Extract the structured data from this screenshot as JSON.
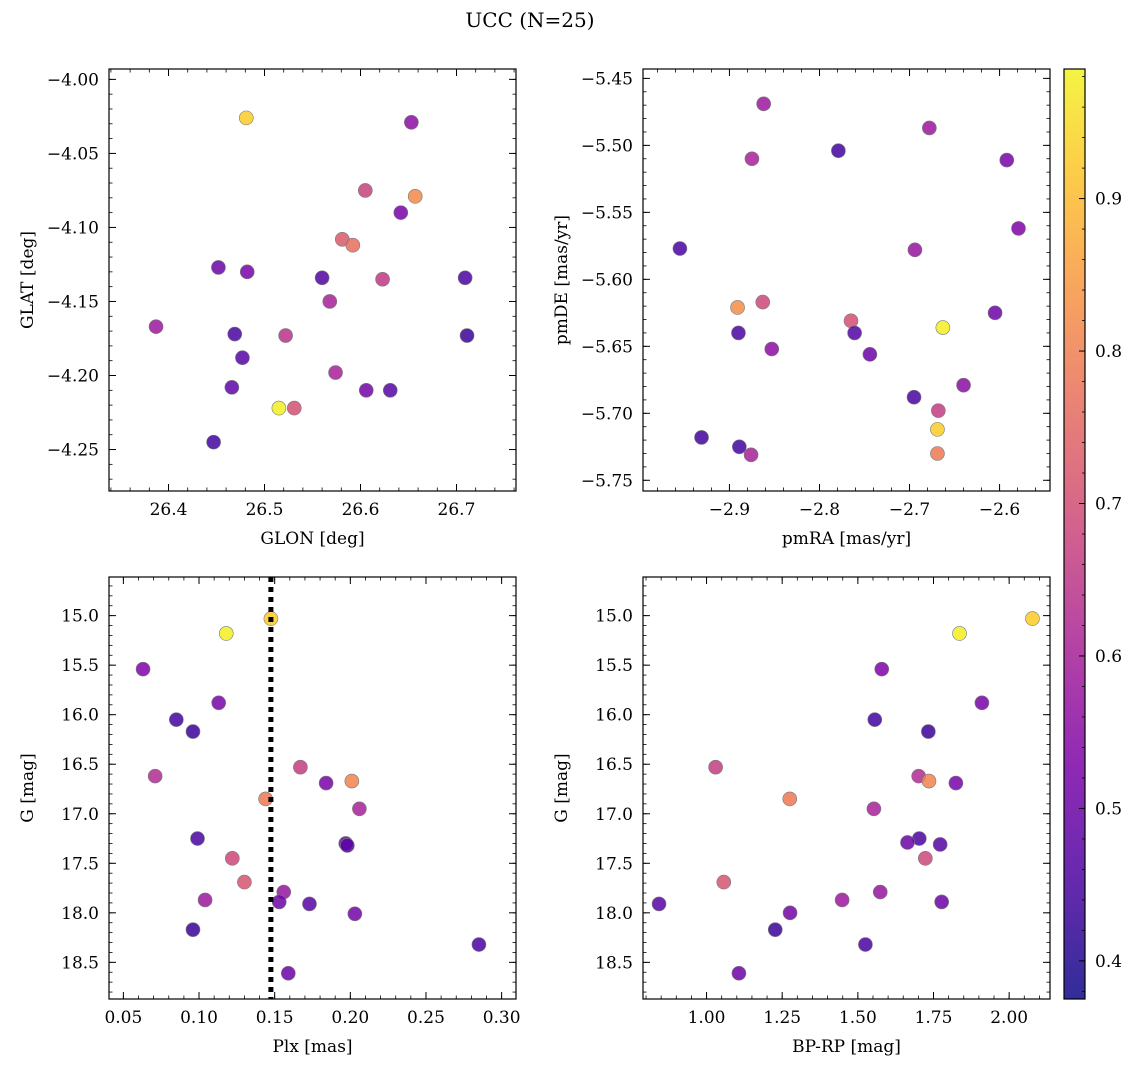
{
  "title": "UCC (N=25)",
  "colorbar": {
    "range": [
      0.375,
      0.985
    ],
    "ticks": [
      0.4,
      0.5,
      0.6,
      0.7,
      0.8,
      0.9
    ],
    "tick_labels": [
      "0.4",
      "0.5",
      "0.6",
      "0.7",
      "0.8",
      "0.9"
    ],
    "colormap": "plasma"
  },
  "chart_data": [
    {
      "type": "scatter",
      "xlabel": "GLON [deg]",
      "ylabel": "GLAT [deg]",
      "xlim": [
        26.338,
        26.762
      ],
      "ylim": [
        -4.278,
        -3.993
      ],
      "xticks": [
        26.4,
        26.5,
        26.6,
        26.7
      ],
      "xtick_labels": [
        "26.4",
        "26.5",
        "26.6",
        "26.7"
      ],
      "yticks": [
        -4.25,
        -4.2,
        -4.15,
        -4.1,
        -4.05,
        -4.0
      ],
      "ytick_labels": [
        "−4.25",
        "−4.20",
        "−4.15",
        "−4.10",
        "−4.05",
        "−4.00"
      ],
      "y_inverted": false,
      "points": [
        {
          "x": 26.481,
          "y": -4.026,
          "c": 0.92
        },
        {
          "x": 26.653,
          "y": -4.029,
          "c": 0.55
        },
        {
          "x": 26.605,
          "y": -4.075,
          "c": 0.67
        },
        {
          "x": 26.657,
          "y": -4.079,
          "c": 0.81
        },
        {
          "x": 26.642,
          "y": -4.09,
          "c": 0.52
        },
        {
          "x": 26.581,
          "y": -4.108,
          "c": 0.72
        },
        {
          "x": 26.592,
          "y": -4.112,
          "c": 0.76
        },
        {
          "x": 26.452,
          "y": -4.127,
          "c": 0.5
        },
        {
          "x": 26.482,
          "y": -4.13,
          "c": 0.52
        },
        {
          "x": 26.56,
          "y": -4.134,
          "c": 0.46
        },
        {
          "x": 26.709,
          "y": -4.134,
          "c": 0.45
        },
        {
          "x": 26.623,
          "y": -4.135,
          "c": 0.65
        },
        {
          "x": 26.568,
          "y": -4.15,
          "c": 0.6
        },
        {
          "x": 26.387,
          "y": -4.167,
          "c": 0.58
        },
        {
          "x": 26.469,
          "y": -4.172,
          "c": 0.45
        },
        {
          "x": 26.522,
          "y": -4.173,
          "c": 0.64
        },
        {
          "x": 26.711,
          "y": -4.173,
          "c": 0.43
        },
        {
          "x": 26.477,
          "y": -4.188,
          "c": 0.47
        },
        {
          "x": 26.574,
          "y": -4.198,
          "c": 0.6
        },
        {
          "x": 26.466,
          "y": -4.208,
          "c": 0.48
        },
        {
          "x": 26.606,
          "y": -4.21,
          "c": 0.51
        },
        {
          "x": 26.631,
          "y": -4.21,
          "c": 0.47
        },
        {
          "x": 26.515,
          "y": -4.222,
          "c": 0.97
        },
        {
          "x": 26.531,
          "y": -4.222,
          "c": 0.7
        },
        {
          "x": 26.447,
          "y": -4.245,
          "c": 0.44
        }
      ]
    },
    {
      "type": "scatter",
      "xlabel": "pmRA [mas/yr]",
      "ylabel": "pmDE [mas/yr]",
      "xlim": [
        -2.996,
        -2.544
      ],
      "ylim": [
        -5.758,
        -5.443
      ],
      "xticks": [
        -2.9,
        -2.8,
        -2.7,
        -2.6
      ],
      "xtick_labels": [
        "−2.9",
        "−2.8",
        "−2.7",
        "−2.6"
      ],
      "yticks": [
        -5.75,
        -5.7,
        -5.65,
        -5.6,
        -5.55,
        -5.5,
        -5.45
      ],
      "ytick_labels": [
        "−5.75",
        "−5.70",
        "−5.65",
        "−5.60",
        "−5.55",
        "−5.50",
        "−5.45"
      ],
      "y_inverted": false,
      "points": [
        {
          "x": -2.862,
          "y": -5.469,
          "c": 0.58
        },
        {
          "x": -2.678,
          "y": -5.487,
          "c": 0.58
        },
        {
          "x": -2.779,
          "y": -5.504,
          "c": 0.44
        },
        {
          "x": -2.875,
          "y": -5.51,
          "c": 0.6
        },
        {
          "x": -2.592,
          "y": -5.511,
          "c": 0.52
        },
        {
          "x": -2.579,
          "y": -5.562,
          "c": 0.53
        },
        {
          "x": -2.955,
          "y": -5.577,
          "c": 0.45
        },
        {
          "x": -2.694,
          "y": -5.578,
          "c": 0.57
        },
        {
          "x": -2.863,
          "y": -5.617,
          "c": 0.68
        },
        {
          "x": -2.891,
          "y": -5.621,
          "c": 0.82
        },
        {
          "x": -2.605,
          "y": -5.625,
          "c": 0.5
        },
        {
          "x": -2.765,
          "y": -5.631,
          "c": 0.7
        },
        {
          "x": -2.663,
          "y": -5.636,
          "c": 0.97
        },
        {
          "x": -2.89,
          "y": -5.64,
          "c": 0.45
        },
        {
          "x": -2.761,
          "y": -5.64,
          "c": 0.46
        },
        {
          "x": -2.853,
          "y": -5.652,
          "c": 0.55
        },
        {
          "x": -2.744,
          "y": -5.656,
          "c": 0.5
        },
        {
          "x": -2.64,
          "y": -5.679,
          "c": 0.55
        },
        {
          "x": -2.695,
          "y": -5.688,
          "c": 0.45
        },
        {
          "x": -2.668,
          "y": -5.698,
          "c": 0.66
        },
        {
          "x": -2.669,
          "y": -5.712,
          "c": 0.92
        },
        {
          "x": -2.931,
          "y": -5.718,
          "c": 0.44
        },
        {
          "x": -2.889,
          "y": -5.725,
          "c": 0.44
        },
        {
          "x": -2.876,
          "y": -5.731,
          "c": 0.6
        },
        {
          "x": -2.669,
          "y": -5.73,
          "c": 0.78
        }
      ]
    },
    {
      "type": "scatter",
      "xlabel": "Plx [mas]",
      "ylabel": "G [mag]",
      "xlim": [
        0.0405,
        0.3095
      ],
      "ylim": [
        18.87,
        14.61
      ],
      "xticks": [
        0.05,
        0.1,
        0.15,
        0.2,
        0.25,
        0.3
      ],
      "xtick_labels": [
        "0.05",
        "0.10",
        "0.15",
        "0.20",
        "0.25",
        "0.30"
      ],
      "yticks": [
        15.0,
        15.5,
        16.0,
        16.5,
        17.0,
        17.5,
        18.0,
        18.5
      ],
      "ytick_labels": [
        "15.0",
        "15.5",
        "16.0",
        "16.5",
        "17.0",
        "17.5",
        "18.0",
        "18.5"
      ],
      "y_inverted": true,
      "vline": 0.1475,
      "points": [
        {
          "x": 0.1475,
          "y": 15.03,
          "c": 0.92
        },
        {
          "x": 0.118,
          "y": 15.18,
          "c": 0.97
        },
        {
          "x": 0.063,
          "y": 15.54,
          "c": 0.53
        },
        {
          "x": 0.113,
          "y": 15.88,
          "c": 0.52
        },
        {
          "x": 0.085,
          "y": 16.05,
          "c": 0.44
        },
        {
          "x": 0.096,
          "y": 16.17,
          "c": 0.43
        },
        {
          "x": 0.167,
          "y": 16.53,
          "c": 0.66
        },
        {
          "x": 0.071,
          "y": 16.62,
          "c": 0.62
        },
        {
          "x": 0.201,
          "y": 16.67,
          "c": 0.8
        },
        {
          "x": 0.184,
          "y": 16.69,
          "c": 0.52
        },
        {
          "x": 0.144,
          "y": 16.85,
          "c": 0.78
        },
        {
          "x": 0.206,
          "y": 16.95,
          "c": 0.6
        },
        {
          "x": 0.099,
          "y": 17.25,
          "c": 0.45
        },
        {
          "x": 0.197,
          "y": 17.3,
          "c": 0.5
        },
        {
          "x": 0.198,
          "y": 17.32,
          "c": 0.47
        },
        {
          "x": 0.122,
          "y": 17.45,
          "c": 0.68
        },
        {
          "x": 0.13,
          "y": 17.69,
          "c": 0.71
        },
        {
          "x": 0.156,
          "y": 17.79,
          "c": 0.57
        },
        {
          "x": 0.104,
          "y": 17.87,
          "c": 0.58
        },
        {
          "x": 0.153,
          "y": 17.89,
          "c": 0.5
        },
        {
          "x": 0.173,
          "y": 17.91,
          "c": 0.47
        },
        {
          "x": 0.203,
          "y": 18.01,
          "c": 0.51
        },
        {
          "x": 0.096,
          "y": 18.17,
          "c": 0.43
        },
        {
          "x": 0.285,
          "y": 18.32,
          "c": 0.45
        },
        {
          "x": 0.159,
          "y": 18.61,
          "c": 0.5
        }
      ]
    },
    {
      "type": "scatter",
      "xlabel": "BP-RP [mag]",
      "ylabel": "G [mag]",
      "xlim": [
        0.79,
        2.135
      ],
      "ylim": [
        18.87,
        14.61
      ],
      "xticks": [
        1.0,
        1.25,
        1.5,
        1.75,
        2.0
      ],
      "xtick_labels": [
        "1.00",
        "1.25",
        "1.50",
        "1.75",
        "2.00"
      ],
      "yticks": [
        15.0,
        15.5,
        16.0,
        16.5,
        17.0,
        17.5,
        18.0,
        18.5
      ],
      "ytick_labels": [
        "15.0",
        "15.5",
        "16.0",
        "16.5",
        "17.0",
        "17.5",
        "18.0",
        "18.5"
      ],
      "y_inverted": true,
      "points": [
        {
          "x": 2.077,
          "y": 15.03,
          "c": 0.92
        },
        {
          "x": 1.836,
          "y": 15.18,
          "c": 0.97
        },
        {
          "x": 1.579,
          "y": 15.54,
          "c": 0.53
        },
        {
          "x": 1.91,
          "y": 15.88,
          "c": 0.52
        },
        {
          "x": 1.556,
          "y": 16.05,
          "c": 0.44
        },
        {
          "x": 1.733,
          "y": 16.17,
          "c": 0.43
        },
        {
          "x": 1.03,
          "y": 16.53,
          "c": 0.66
        },
        {
          "x": 1.701,
          "y": 16.62,
          "c": 0.62
        },
        {
          "x": 1.735,
          "y": 16.67,
          "c": 0.8
        },
        {
          "x": 1.824,
          "y": 16.69,
          "c": 0.52
        },
        {
          "x": 1.275,
          "y": 16.85,
          "c": 0.78
        },
        {
          "x": 1.553,
          "y": 16.95,
          "c": 0.6
        },
        {
          "x": 1.703,
          "y": 17.25,
          "c": 0.45
        },
        {
          "x": 1.664,
          "y": 17.29,
          "c": 0.5
        },
        {
          "x": 1.772,
          "y": 17.31,
          "c": 0.47
        },
        {
          "x": 1.723,
          "y": 17.45,
          "c": 0.68
        },
        {
          "x": 1.057,
          "y": 17.69,
          "c": 0.71
        },
        {
          "x": 1.574,
          "y": 17.79,
          "c": 0.57
        },
        {
          "x": 1.448,
          "y": 17.87,
          "c": 0.58
        },
        {
          "x": 1.777,
          "y": 17.89,
          "c": 0.5
        },
        {
          "x": 0.843,
          "y": 17.91,
          "c": 0.47
        },
        {
          "x": 1.276,
          "y": 18.0,
          "c": 0.51
        },
        {
          "x": 1.227,
          "y": 18.17,
          "c": 0.43
        },
        {
          "x": 1.525,
          "y": 18.32,
          "c": 0.45
        },
        {
          "x": 1.107,
          "y": 18.61,
          "c": 0.5
        }
      ]
    }
  ]
}
